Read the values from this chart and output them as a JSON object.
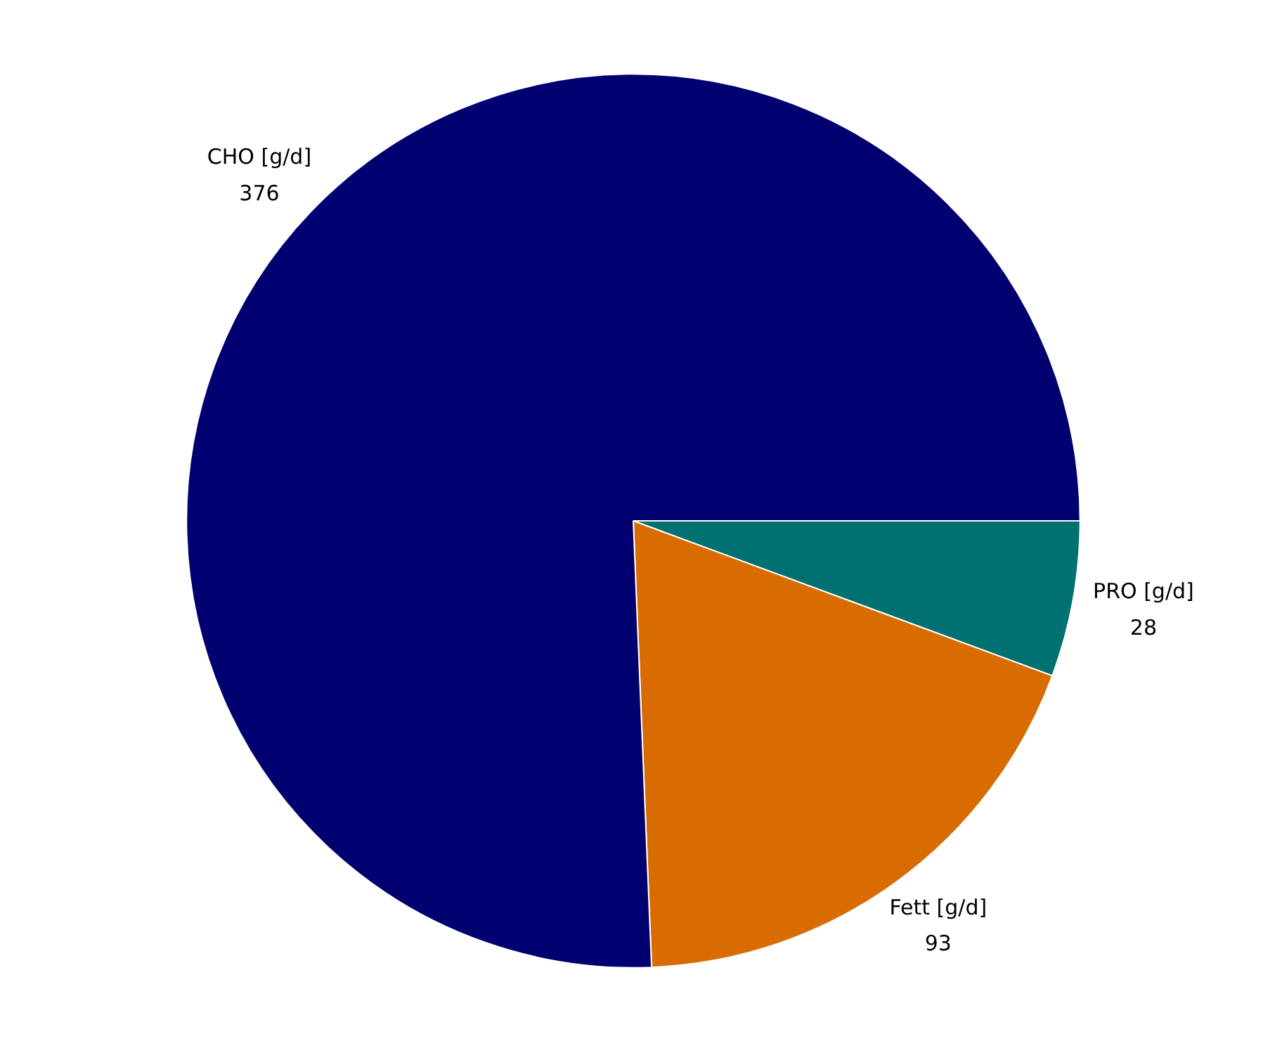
{
  "chart_data": {
    "type": "pie",
    "categories": [
      "PRO [g/d]",
      "Fett [g/d]",
      "CHO [g/d]"
    ],
    "values": [
      28,
      93,
      376
    ],
    "colors": [
      "#007070",
      "#d86c00",
      "#000070"
    ],
    "data_labels": true
  }
}
